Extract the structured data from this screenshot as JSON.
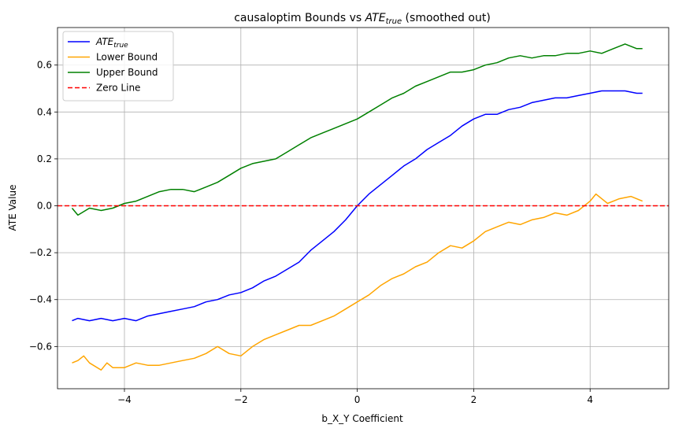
{
  "chart_data": {
    "type": "line",
    "title": {
      "prefix": "causaloptim Bounds vs ",
      "math_main": "ATE",
      "math_sub": "true",
      "suffix": " (smoothed out)"
    },
    "xlabel": "b_X_Y Coefficient",
    "ylabel": "ATE Value",
    "xlim": [
      -5.15,
      5.35
    ],
    "ylim": [
      -0.78,
      0.76
    ],
    "xticks": [
      -4,
      -2,
      0,
      2,
      4
    ],
    "xtick_labels": [
      "−4",
      "−2",
      "0",
      "2",
      "4"
    ],
    "yticks": [
      -0.6,
      -0.4,
      -0.2,
      0.0,
      0.2,
      0.4,
      0.6
    ],
    "ytick_labels": [
      "−0.6",
      "−0.4",
      "−0.2",
      "0.0",
      "0.2",
      "0.4",
      "0.6"
    ],
    "grid": true,
    "legend_position": "upper-left",
    "series": [
      {
        "name": "ATE_true",
        "legend_main": "ATE",
        "legend_sub": "true",
        "color": "#0000ff",
        "style": "solid",
        "points": [
          [
            -4.9,
            -0.49
          ],
          [
            -4.8,
            -0.48
          ],
          [
            -4.6,
            -0.49
          ],
          [
            -4.4,
            -0.48
          ],
          [
            -4.2,
            -0.49
          ],
          [
            -4.0,
            -0.48
          ],
          [
            -3.8,
            -0.49
          ],
          [
            -3.6,
            -0.47
          ],
          [
            -3.4,
            -0.46
          ],
          [
            -3.2,
            -0.45
          ],
          [
            -3.0,
            -0.44
          ],
          [
            -2.8,
            -0.43
          ],
          [
            -2.6,
            -0.41
          ],
          [
            -2.4,
            -0.4
          ],
          [
            -2.2,
            -0.38
          ],
          [
            -2.0,
            -0.37
          ],
          [
            -1.8,
            -0.35
          ],
          [
            -1.6,
            -0.32
          ],
          [
            -1.4,
            -0.3
          ],
          [
            -1.2,
            -0.27
          ],
          [
            -1.0,
            -0.24
          ],
          [
            -0.8,
            -0.19
          ],
          [
            -0.6,
            -0.15
          ],
          [
            -0.4,
            -0.11
          ],
          [
            -0.2,
            -0.06
          ],
          [
            0.0,
            0.0
          ],
          [
            0.2,
            0.05
          ],
          [
            0.4,
            0.09
          ],
          [
            0.6,
            0.13
          ],
          [
            0.8,
            0.17
          ],
          [
            1.0,
            0.2
          ],
          [
            1.2,
            0.24
          ],
          [
            1.4,
            0.27
          ],
          [
            1.6,
            0.3
          ],
          [
            1.8,
            0.34
          ],
          [
            2.0,
            0.37
          ],
          [
            2.2,
            0.39
          ],
          [
            2.4,
            0.39
          ],
          [
            2.6,
            0.41
          ],
          [
            2.8,
            0.42
          ],
          [
            3.0,
            0.44
          ],
          [
            3.2,
            0.45
          ],
          [
            3.4,
            0.46
          ],
          [
            3.6,
            0.46
          ],
          [
            3.8,
            0.47
          ],
          [
            4.0,
            0.48
          ],
          [
            4.2,
            0.49
          ],
          [
            4.4,
            0.49
          ],
          [
            4.6,
            0.49
          ],
          [
            4.8,
            0.48
          ],
          [
            4.9,
            0.48
          ]
        ]
      },
      {
        "name": "Lower Bound",
        "legend_main": "Lower Bound",
        "legend_sub": "",
        "color": "#ffa500",
        "style": "solid",
        "points": [
          [
            -4.9,
            -0.67
          ],
          [
            -4.8,
            -0.66
          ],
          [
            -4.7,
            -0.64
          ],
          [
            -4.6,
            -0.67
          ],
          [
            -4.4,
            -0.7
          ],
          [
            -4.3,
            -0.67
          ],
          [
            -4.2,
            -0.69
          ],
          [
            -4.0,
            -0.69
          ],
          [
            -3.8,
            -0.67
          ],
          [
            -3.6,
            -0.68
          ],
          [
            -3.4,
            -0.68
          ],
          [
            -3.2,
            -0.67
          ],
          [
            -3.0,
            -0.66
          ],
          [
            -2.8,
            -0.65
          ],
          [
            -2.6,
            -0.63
          ],
          [
            -2.4,
            -0.6
          ],
          [
            -2.2,
            -0.63
          ],
          [
            -2.0,
            -0.64
          ],
          [
            -1.8,
            -0.6
          ],
          [
            -1.6,
            -0.57
          ],
          [
            -1.4,
            -0.55
          ],
          [
            -1.2,
            -0.53
          ],
          [
            -1.0,
            -0.51
          ],
          [
            -0.8,
            -0.51
          ],
          [
            -0.6,
            -0.49
          ],
          [
            -0.4,
            -0.47
          ],
          [
            -0.2,
            -0.44
          ],
          [
            0.0,
            -0.41
          ],
          [
            0.2,
            -0.38
          ],
          [
            0.4,
            -0.34
          ],
          [
            0.6,
            -0.31
          ],
          [
            0.8,
            -0.29
          ],
          [
            1.0,
            -0.26
          ],
          [
            1.2,
            -0.24
          ],
          [
            1.4,
            -0.2
          ],
          [
            1.6,
            -0.17
          ],
          [
            1.8,
            -0.18
          ],
          [
            2.0,
            -0.15
          ],
          [
            2.2,
            -0.11
          ],
          [
            2.4,
            -0.09
          ],
          [
            2.6,
            -0.07
          ],
          [
            2.8,
            -0.08
          ],
          [
            3.0,
            -0.06
          ],
          [
            3.2,
            -0.05
          ],
          [
            3.4,
            -0.03
          ],
          [
            3.6,
            -0.04
          ],
          [
            3.8,
            -0.02
          ],
          [
            4.0,
            0.02
          ],
          [
            4.1,
            0.05
          ],
          [
            4.3,
            0.01
          ],
          [
            4.5,
            0.03
          ],
          [
            4.7,
            0.04
          ],
          [
            4.9,
            0.02
          ]
        ]
      },
      {
        "name": "Upper Bound",
        "legend_main": "Upper Bound",
        "legend_sub": "",
        "color": "#008000",
        "style": "solid",
        "points": [
          [
            -4.9,
            -0.01
          ],
          [
            -4.8,
            -0.04
          ],
          [
            -4.6,
            -0.01
          ],
          [
            -4.4,
            -0.02
          ],
          [
            -4.2,
            -0.01
          ],
          [
            -4.0,
            0.01
          ],
          [
            -3.8,
            0.02
          ],
          [
            -3.6,
            0.04
          ],
          [
            -3.4,
            0.06
          ],
          [
            -3.2,
            0.07
          ],
          [
            -3.0,
            0.07
          ],
          [
            -2.8,
            0.06
          ],
          [
            -2.6,
            0.08
          ],
          [
            -2.4,
            0.1
          ],
          [
            -2.2,
            0.13
          ],
          [
            -2.0,
            0.16
          ],
          [
            -1.8,
            0.18
          ],
          [
            -1.6,
            0.19
          ],
          [
            -1.4,
            0.2
          ],
          [
            -1.2,
            0.23
          ],
          [
            -1.0,
            0.26
          ],
          [
            -0.8,
            0.29
          ],
          [
            -0.6,
            0.31
          ],
          [
            -0.4,
            0.33
          ],
          [
            -0.2,
            0.35
          ],
          [
            0.0,
            0.37
          ],
          [
            0.2,
            0.4
          ],
          [
            0.4,
            0.43
          ],
          [
            0.6,
            0.46
          ],
          [
            0.8,
            0.48
          ],
          [
            1.0,
            0.51
          ],
          [
            1.2,
            0.53
          ],
          [
            1.4,
            0.55
          ],
          [
            1.6,
            0.57
          ],
          [
            1.8,
            0.57
          ],
          [
            2.0,
            0.58
          ],
          [
            2.2,
            0.6
          ],
          [
            2.4,
            0.61
          ],
          [
            2.6,
            0.63
          ],
          [
            2.8,
            0.64
          ],
          [
            3.0,
            0.63
          ],
          [
            3.2,
            0.64
          ],
          [
            3.4,
            0.64
          ],
          [
            3.6,
            0.65
          ],
          [
            3.8,
            0.65
          ],
          [
            4.0,
            0.66
          ],
          [
            4.2,
            0.65
          ],
          [
            4.4,
            0.67
          ],
          [
            4.6,
            0.69
          ],
          [
            4.8,
            0.67
          ],
          [
            4.9,
            0.67
          ]
        ]
      },
      {
        "name": "Zero Line",
        "legend_main": "Zero Line",
        "legend_sub": "",
        "color": "#ff0000",
        "style": "dashed",
        "hline": 0.0
      }
    ]
  }
}
